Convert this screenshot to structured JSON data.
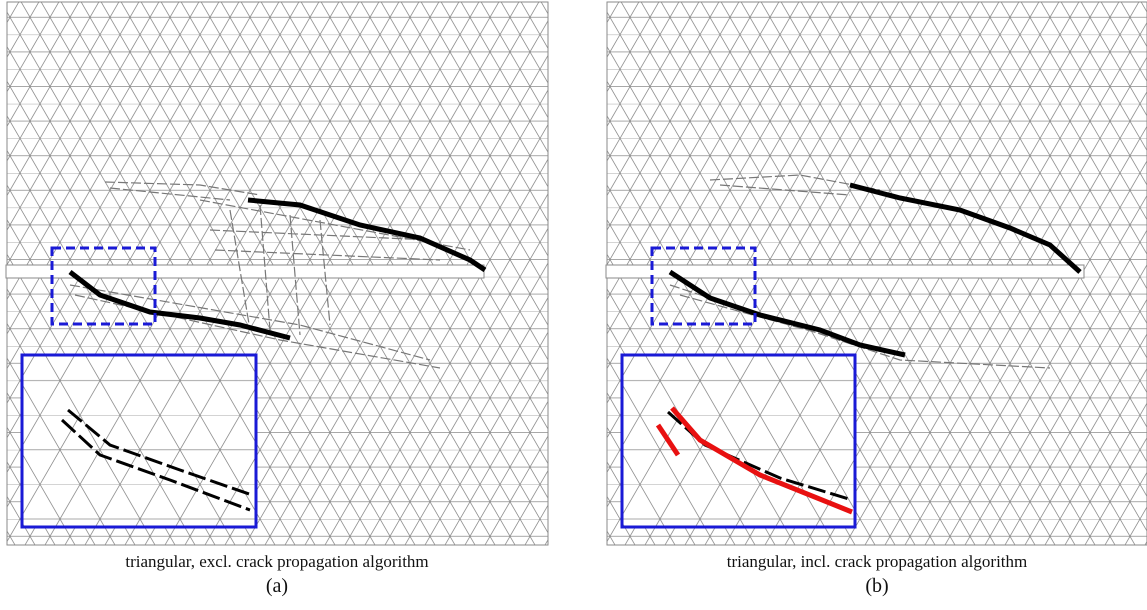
{
  "panels": [
    {
      "caption": "triangular, excl. crack propagation algorithm",
      "label": "(a)"
    },
    {
      "caption": "triangular, incl. crack propagation algorithm",
      "label": "(b)"
    }
  ]
}
